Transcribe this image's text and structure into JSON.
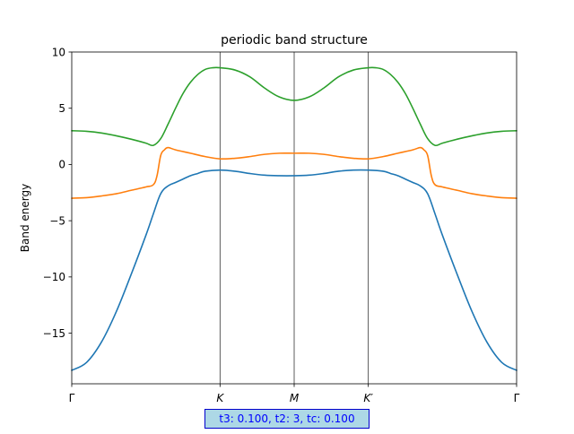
{
  "chart_data": {
    "type": "line",
    "title": "periodic band structure",
    "xlabel": "",
    "ylabel": "Band energy",
    "ylim": [
      -19.5,
      10
    ],
    "yticks": [
      10,
      5,
      0,
      -5,
      -10,
      -15
    ],
    "ytick_labels": [
      "10",
      "5",
      "0",
      "−5",
      "−10",
      "−15"
    ],
    "xlim": [
      0,
      6
    ],
    "xticks": [
      0,
      2,
      3,
      4,
      6
    ],
    "xtick_labels": [
      "Γ",
      "K",
      "M",
      "K′",
      "Γ"
    ],
    "kpoint_lines": [
      2,
      3,
      4
    ],
    "grid": false,
    "legend": "none",
    "series": [
      {
        "color": "#1f77b4",
        "x": [
          0,
          0.2,
          0.4,
          0.6,
          0.8,
          1.0,
          1.1,
          1.2,
          1.3,
          1.4,
          1.5,
          1.6,
          1.7,
          1.8,
          2.0,
          2.2,
          2.4,
          2.6,
          2.8,
          3.0,
          3.2,
          3.4,
          3.6,
          3.8,
          4.0,
          4.2,
          4.3,
          4.4,
          4.5,
          4.6,
          4.7,
          4.8,
          4.9,
          5.0,
          5.2,
          5.4,
          5.6,
          5.8,
          6.0
        ],
        "y": [
          -18.3,
          -17.6,
          -15.8,
          -13.1,
          -9.8,
          -6.3,
          -4.4,
          -2.6,
          -1.9,
          -1.6,
          -1.3,
          -1.0,
          -0.8,
          -0.6,
          -0.5,
          -0.6,
          -0.8,
          -0.95,
          -1.0,
          -1.0,
          -0.95,
          -0.8,
          -0.6,
          -0.5,
          -0.5,
          -0.6,
          -0.8,
          -1.0,
          -1.3,
          -1.6,
          -1.9,
          -2.6,
          -4.4,
          -6.3,
          -9.8,
          -13.1,
          -15.8,
          -17.6,
          -18.3
        ]
      },
      {
        "color": "#ff7f0e",
        "x": [
          0,
          0.2,
          0.4,
          0.6,
          0.8,
          1.0,
          1.1,
          1.15,
          1.2,
          1.25,
          1.3,
          1.4,
          1.6,
          1.8,
          2.0,
          2.2,
          2.4,
          2.6,
          2.8,
          3.0,
          3.2,
          3.4,
          3.6,
          3.8,
          4.0,
          4.2,
          4.4,
          4.6,
          4.7,
          4.75,
          4.8,
          4.85,
          4.9,
          5.0,
          5.2,
          5.4,
          5.6,
          5.8,
          6.0
        ],
        "y": [
          -3.0,
          -2.95,
          -2.8,
          -2.6,
          -2.3,
          -2.0,
          -1.8,
          -1.0,
          0.8,
          1.3,
          1.5,
          1.3,
          1.0,
          0.7,
          0.5,
          0.55,
          0.7,
          0.9,
          1.0,
          1.0,
          1.0,
          0.9,
          0.7,
          0.55,
          0.5,
          0.7,
          1.0,
          1.3,
          1.5,
          1.3,
          0.8,
          -1.0,
          -1.8,
          -2.0,
          -2.3,
          -2.6,
          -2.8,
          -2.95,
          -3.0
        ]
      },
      {
        "color": "#2ca02c",
        "x": [
          0,
          0.2,
          0.4,
          0.6,
          0.8,
          1.0,
          1.1,
          1.2,
          1.3,
          1.4,
          1.5,
          1.6,
          1.7,
          1.8,
          1.9,
          2.0,
          2.2,
          2.4,
          2.6,
          2.8,
          3.0,
          3.2,
          3.4,
          3.6,
          3.8,
          4.0,
          4.1,
          4.2,
          4.3,
          4.4,
          4.5,
          4.6,
          4.7,
          4.8,
          4.9,
          5.0,
          5.2,
          5.4,
          5.6,
          5.8,
          6.0
        ],
        "y": [
          3.0,
          2.95,
          2.8,
          2.55,
          2.25,
          1.9,
          1.7,
          2.3,
          3.6,
          5.0,
          6.3,
          7.3,
          8.0,
          8.45,
          8.6,
          8.6,
          8.4,
          7.8,
          6.8,
          6.0,
          5.7,
          6.0,
          6.8,
          7.8,
          8.4,
          8.6,
          8.6,
          8.45,
          8.0,
          7.3,
          6.3,
          5.0,
          3.6,
          2.3,
          1.7,
          1.9,
          2.25,
          2.55,
          2.8,
          2.95,
          3.0
        ]
      }
    ]
  },
  "param_box": {
    "text": "t3: 0.100, t2: 3, tc: 0.100"
  }
}
